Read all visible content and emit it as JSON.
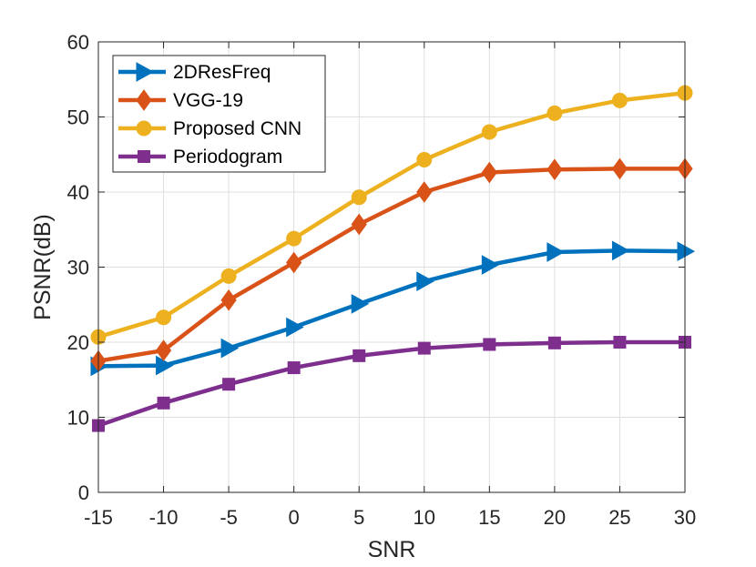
{
  "chart_data": {
    "type": "line",
    "title": "",
    "xlabel": "SNR",
    "ylabel": "PSNR(dB)",
    "x": [
      -15,
      -10,
      -5,
      0,
      5,
      10,
      15,
      20,
      25,
      30
    ],
    "xlim": [
      -15,
      30
    ],
    "ylim": [
      0,
      60
    ],
    "xticks": [
      "-15",
      "-10",
      "-5",
      "0",
      "5",
      "10",
      "15",
      "20",
      "25",
      "30"
    ],
    "yticks": [
      "0",
      "10",
      "20",
      "30",
      "40",
      "50",
      "60"
    ],
    "grid": true,
    "legend_position": "top-left",
    "series": [
      {
        "name": "2DResFreq",
        "color": "#0072BD",
        "marker": "triangle-right",
        "values": [
          16.8,
          16.9,
          19.2,
          22.0,
          25.1,
          28.1,
          30.3,
          32.0,
          32.2,
          32.1
        ]
      },
      {
        "name": "VGG-19",
        "color": "#D95319",
        "marker": "diamond",
        "values": [
          17.5,
          18.9,
          25.6,
          30.6,
          35.7,
          40.0,
          42.6,
          43.0,
          43.1,
          43.1
        ]
      },
      {
        "name": "Proposed CNN",
        "color": "#EDB120",
        "marker": "circle",
        "values": [
          20.7,
          23.3,
          28.8,
          33.8,
          39.3,
          44.3,
          48.0,
          50.5,
          52.2,
          53.2
        ]
      },
      {
        "name": "Periodogram",
        "color": "#7E2F8E",
        "marker": "square",
        "values": [
          8.9,
          11.9,
          14.4,
          16.6,
          18.2,
          19.2,
          19.7,
          19.9,
          20.0,
          20.0
        ]
      }
    ]
  }
}
